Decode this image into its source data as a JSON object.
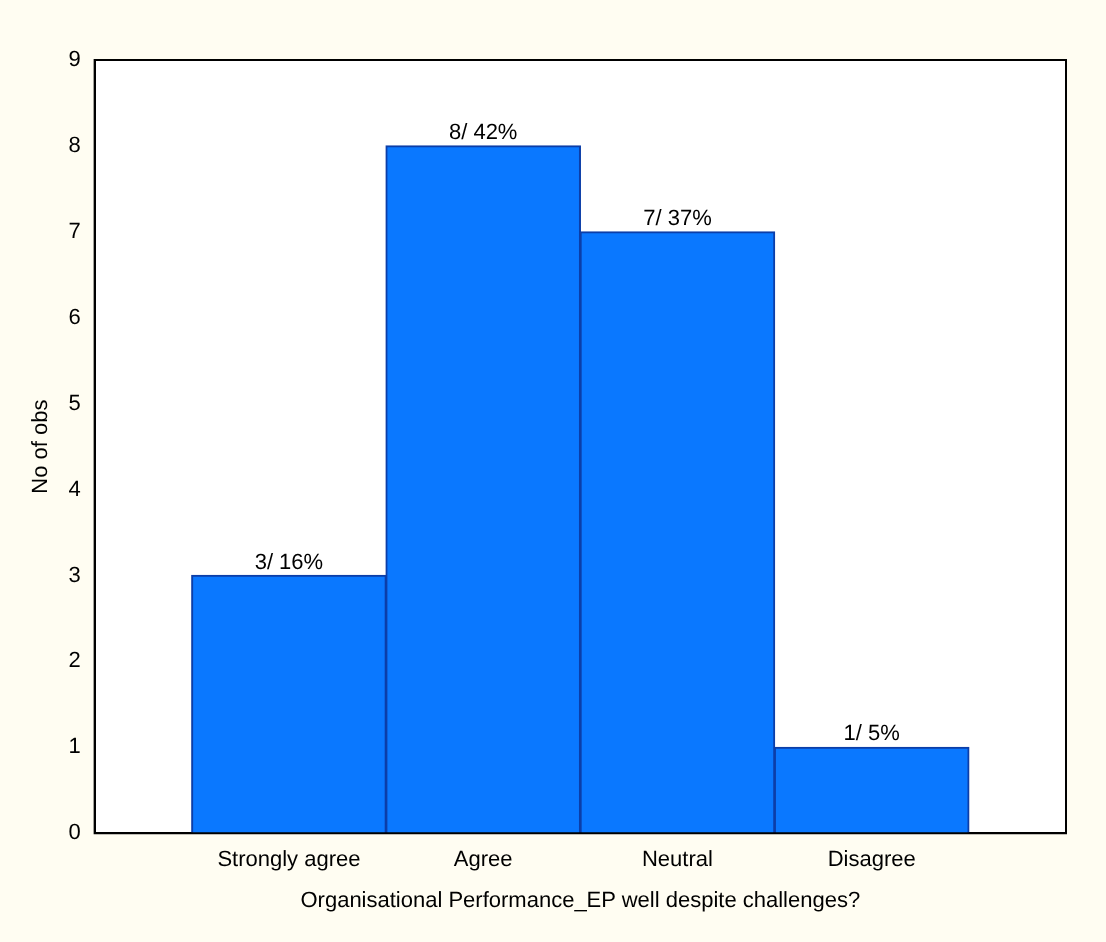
{
  "chart_data": {
    "type": "bar",
    "xlabel": "Organisational Performance_EP well despite challenges?",
    "ylabel": "No of obs",
    "categories": [
      "Strongly agree",
      "Agree",
      "Neutral",
      "Disagree"
    ],
    "values": [
      3,
      8,
      7,
      1
    ],
    "color": "#0a78ff",
    "value_labels": [
      "3/ 16%",
      "8/ 42%",
      "7/ 37%",
      "1/ 5%"
    ],
    "ylim": [
      0,
      9
    ],
    "yticks": [
      0,
      1,
      2,
      3,
      4,
      5,
      6,
      7,
      8,
      9
    ],
    "grid": false,
    "legend": false
  }
}
